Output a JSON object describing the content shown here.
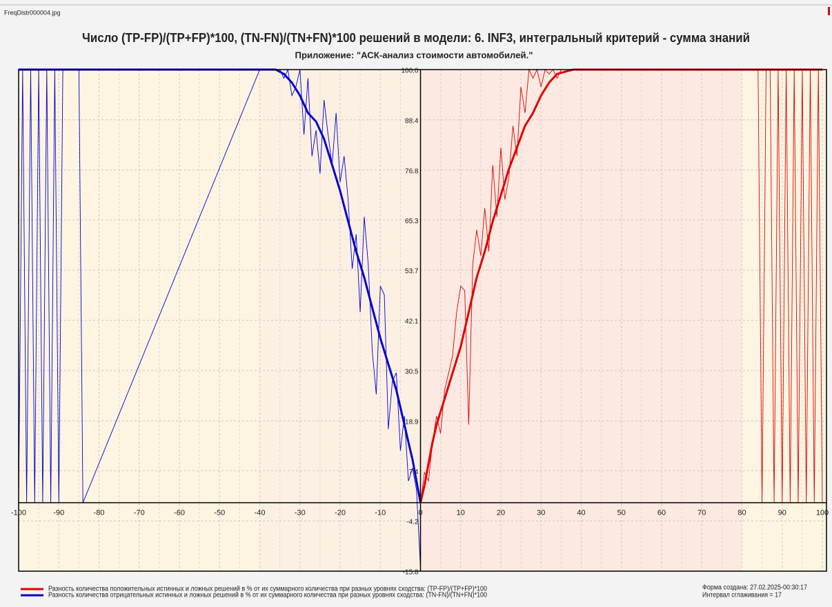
{
  "filename": "FreqDistr000004.jpg",
  "chart_data": {
    "type": "line",
    "title": "Число (TP-FP)/(TP+FP)*100, (TN-FN)/(TN+FN)*100 решений в модели: 6. INF3, интегральный критерий - сумма знаний",
    "subtitle": "Приложение: \"АСК-анализ стоимости автомобилей.\"",
    "xlim": [
      -100,
      100
    ],
    "xticks": [
      -100,
      -90,
      -80,
      -70,
      -60,
      -50,
      -40,
      -30,
      -20,
      -10,
      0,
      10,
      20,
      30,
      40,
      50,
      60,
      70,
      80,
      90,
      100
    ],
    "ylim": [
      -15.8,
      100
    ],
    "yticks": [
      {
        "value": 100,
        "label": "100.0"
      },
      88.4,
      76.8,
      65.3,
      53.7,
      42.1,
      30.5,
      18.9,
      7.4,
      -4.2,
      -15.8
    ],
    "grid": true,
    "series": [
      {
        "name": "Разность количества положительных истинных и ложных решений в % от их суммарного количества при разных уровнях сходства: (TP-FP)/(TP+FP)*100",
        "color": "#e00000",
        "x": [
          0,
          1,
          2,
          3,
          4,
          5,
          6,
          8,
          10,
          12,
          14,
          16,
          18,
          20,
          22,
          24,
          26,
          28,
          30,
          32,
          34,
          36,
          38,
          40,
          45,
          50,
          60,
          70,
          80,
          90,
          100
        ],
        "values": [
          0,
          4,
          9,
          14,
          18,
          21,
          24,
          30,
          36,
          44,
          52,
          58,
          65,
          71,
          77,
          82,
          87,
          90,
          94,
          97,
          99,
          99.5,
          100,
          100,
          100,
          100,
          100,
          100,
          100,
          100,
          100
        ],
        "raw_x": [
          0,
          1,
          2,
          3,
          4,
          5,
          6,
          7,
          8,
          9,
          10,
          11,
          12,
          13,
          14,
          15,
          16,
          17,
          18,
          19,
          20,
          21,
          22,
          23,
          24,
          25,
          26,
          27,
          28,
          29,
          30,
          31,
          32,
          33,
          34,
          35,
          36,
          38,
          40,
          84,
          85,
          86,
          87,
          88,
          89,
          90,
          91,
          92,
          93,
          94,
          95,
          96,
          97,
          98,
          99,
          100
        ],
        "raw_values": [
          0,
          7,
          5,
          14,
          20,
          16,
          26,
          30,
          34,
          44,
          50,
          49,
          18,
          55,
          63,
          57,
          68,
          58,
          78,
          66,
          82,
          70,
          75,
          87,
          80,
          96,
          90,
          100,
          98,
          100,
          96,
          100,
          99,
          100,
          98,
          100,
          100,
          100,
          100,
          100,
          0,
          100,
          100,
          0,
          100,
          0,
          100,
          0,
          100,
          0,
          100,
          0,
          100,
          0,
          100,
          0
        ]
      },
      {
        "name": "Разность количества отрицательных истинных и ложных решений в % от их суммарного количества при разных уровнях сходства: (TN-FN)/(TN+FN)*100",
        "color": "#0000d0",
        "x": [
          0,
          -1,
          -2,
          -3,
          -4,
          -5,
          -6,
          -8,
          -10,
          -12,
          -14,
          -16,
          -18,
          -20,
          -22,
          -24,
          -26,
          -28,
          -30,
          -32,
          -34,
          -36,
          -38,
          -40,
          -50,
          -60,
          -70,
          -80,
          -90,
          -100
        ],
        "values": [
          0,
          5,
          10,
          14,
          18,
          22,
          26,
          32,
          38,
          45,
          52,
          58,
          65,
          72,
          78,
          84,
          88,
          90,
          94,
          97,
          99,
          100,
          100,
          100,
          100,
          100,
          100,
          100,
          100,
          100
        ],
        "raw_x": [
          0,
          -1,
          -2,
          -3,
          -4,
          -5,
          -6,
          -7,
          -8,
          -9,
          -10,
          -11,
          -12,
          -13,
          -14,
          -15,
          -16,
          -17,
          -18,
          -19,
          -20,
          -21,
          -22,
          -23,
          -24,
          -25,
          -26,
          -27,
          -28,
          -29,
          -30,
          -31,
          -32,
          -33,
          -34,
          -35,
          -36,
          -40,
          -84,
          -85,
          -86,
          -87,
          -88,
          -89,
          -90,
          -91,
          -92,
          -93,
          -94,
          -95,
          -96,
          -97,
          -98,
          -99,
          -100
        ],
        "raw_values": [
          -15,
          3,
          8,
          5,
          20,
          12,
          30,
          28,
          17,
          48,
          50,
          25,
          35,
          55,
          66,
          44,
          62,
          54,
          70,
          80,
          74,
          90,
          78,
          85,
          93,
          76,
          86,
          80,
          98,
          85,
          100,
          96,
          94,
          100,
          98,
          100,
          100,
          100,
          0,
          100,
          100,
          100,
          100,
          100,
          0,
          100,
          0,
          100,
          0,
          100,
          0,
          100,
          0,
          100,
          0
        ]
      }
    ],
    "created": "Форма создана: 27.02.2025-00:30:17",
    "smoothing": "Интервал сглаживания = 17"
  }
}
